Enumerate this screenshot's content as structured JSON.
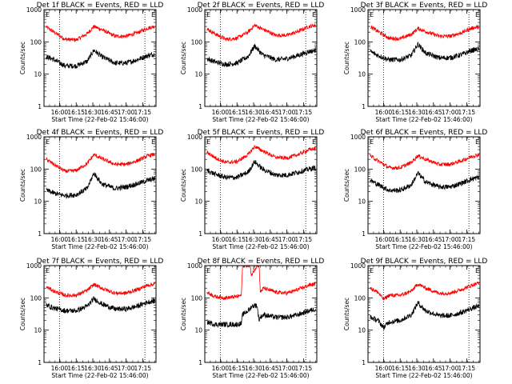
{
  "figure": {
    "xlabel": "Start Time (22-Feb-02 15:46:00)",
    "ylabel": "Counts/sec",
    "xtick_labels": [
      "16:00",
      "16:15",
      "16:30",
      "16:45",
      "17:00",
      "17:15"
    ],
    "ytick_labels": [
      "1",
      "10",
      "100",
      "1000"
    ],
    "colors": {
      "events": "#000000",
      "lld": "#ff0000",
      "axes": "#000000"
    }
  },
  "chart_data": [
    {
      "type": "line",
      "title": "Det 1f BLACK = Events, RED = LLD",
      "xlabel": "Start Time (22-Feb-02 15:46:00)",
      "ylabel": "Counts/sec",
      "yscale": "log",
      "ylim": [
        1,
        1000
      ],
      "xlim": [
        "15:46",
        "17:27"
      ],
      "x": [
        "15:48",
        "15:55",
        "16:05",
        "16:15",
        "16:25",
        "16:31",
        "16:38",
        "16:50",
        "17:00",
        "17:10",
        "17:20",
        "17:26"
      ],
      "series": [
        {
          "name": "LLD",
          "color": "#ff0000",
          "values": [
            290,
            200,
            120,
            115,
            180,
            300,
            240,
            150,
            150,
            190,
            270,
            300
          ]
        },
        {
          "name": "Events",
          "color": "#000000",
          "values": [
            35,
            28,
            18,
            18,
            25,
            55,
            35,
            22,
            22,
            28,
            38,
            42
          ]
        }
      ],
      "markers": [
        {
          "label": "E",
          "x": "15:47"
        },
        {
          "label": "E",
          "x": "17:22"
        }
      ],
      "dotted_x": [
        "16:00",
        "17:17"
      ]
    },
    {
      "type": "line",
      "title": "Det 2f BLACK = Events, RED = LLD",
      "xlabel": "Start Time (22-Feb-02 15:46:00)",
      "ylabel": "Counts/sec",
      "yscale": "log",
      "ylim": [
        1,
        1000
      ],
      "xlim": [
        "15:46",
        "17:27"
      ],
      "x": [
        "15:48",
        "15:55",
        "16:05",
        "16:15",
        "16:25",
        "16:31",
        "16:38",
        "16:50",
        "17:00",
        "17:10",
        "17:20",
        "17:26"
      ],
      "series": [
        {
          "name": "LLD",
          "color": "#ff0000",
          "values": [
            250,
            180,
            120,
            130,
            200,
            330,
            250,
            160,
            160,
            210,
            300,
            330
          ]
        },
        {
          "name": "Events",
          "color": "#000000",
          "values": [
            30,
            24,
            20,
            22,
            35,
            75,
            40,
            28,
            30,
            38,
            50,
            55
          ]
        }
      ],
      "markers": [
        {
          "label": "E",
          "x": "15:47"
        },
        {
          "label": "E",
          "x": "17:22"
        }
      ],
      "dotted_x": [
        "16:00",
        "17:17"
      ]
    },
    {
      "type": "line",
      "title": "Det 3f BLACK = Events, RED = LLD",
      "xlabel": "Start Time (22-Feb-02 15:46:00)",
      "ylabel": "Counts/sec",
      "yscale": "log",
      "ylim": [
        1,
        1000
      ],
      "xlim": [
        "15:46",
        "17:27"
      ],
      "x": [
        "15:48",
        "15:55",
        "16:05",
        "16:15",
        "16:25",
        "16:31",
        "16:38",
        "16:50",
        "17:00",
        "17:10",
        "17:20",
        "17:26"
      ],
      "series": [
        {
          "name": "LLD",
          "color": "#ff0000",
          "values": [
            300,
            210,
            130,
            125,
            170,
            260,
            210,
            150,
            150,
            190,
            270,
            290
          ]
        },
        {
          "name": "Events",
          "color": "#000000",
          "values": [
            50,
            38,
            28,
            28,
            38,
            85,
            45,
            32,
            32,
            40,
            55,
            60
          ]
        }
      ],
      "markers": [
        {
          "label": "E",
          "x": "15:47"
        },
        {
          "label": "E",
          "x": "17:22"
        }
      ],
      "dotted_x": [
        "16:00",
        "17:17"
      ]
    },
    {
      "type": "line",
      "title": "Det 4f BLACK = Events, RED = LLD",
      "xlabel": "Start Time (22-Feb-02 15:46:00)",
      "ylabel": "Counts/sec",
      "yscale": "log",
      "ylim": [
        1,
        1000
      ],
      "xlim": [
        "15:46",
        "17:27"
      ],
      "x": [
        "15:48",
        "15:55",
        "16:05",
        "16:15",
        "16:25",
        "16:31",
        "16:38",
        "16:50",
        "17:00",
        "17:10",
        "17:20",
        "17:26"
      ],
      "series": [
        {
          "name": "LLD",
          "color": "#ff0000",
          "values": [
            200,
            140,
            85,
            90,
            150,
            280,
            210,
            140,
            140,
            180,
            260,
            290
          ]
        },
        {
          "name": "Events",
          "color": "#000000",
          "values": [
            22,
            18,
            15,
            16,
            25,
            75,
            35,
            25,
            28,
            35,
            45,
            50
          ]
        }
      ],
      "markers": [
        {
          "label": "E",
          "x": "15:47"
        },
        {
          "label": "E",
          "x": "17:22"
        }
      ],
      "dotted_x": [
        "16:00",
        "17:17"
      ]
    },
    {
      "type": "line",
      "title": "Det 5f BLACK = Events, RED = LLD",
      "xlabel": "Start Time (22-Feb-02 15:46:00)",
      "ylabel": "Counts/sec",
      "yscale": "log",
      "ylim": [
        1,
        1000
      ],
      "xlim": [
        "15:46",
        "17:27"
      ],
      "x": [
        "15:48",
        "15:55",
        "16:05",
        "16:15",
        "16:25",
        "16:31",
        "16:38",
        "16:50",
        "17:00",
        "17:10",
        "17:20",
        "17:26"
      ],
      "series": [
        {
          "name": "LLD",
          "color": "#ff0000",
          "values": [
            330,
            230,
            160,
            170,
            280,
            500,
            370,
            230,
            220,
            280,
            400,
            430
          ]
        },
        {
          "name": "Events",
          "color": "#000000",
          "values": [
            90,
            70,
            55,
            55,
            80,
            170,
            100,
            65,
            65,
            80,
            100,
            110
          ]
        }
      ],
      "markers": [
        {
          "label": "E",
          "x": "15:47"
        },
        {
          "label": "E",
          "x": "17:22"
        }
      ],
      "dotted_x": [
        "16:00",
        "17:17"
      ]
    },
    {
      "type": "line",
      "title": "Det 6f BLACK = Events, RED = LLD",
      "xlabel": "Start Time (22-Feb-02 15:46:00)",
      "ylabel": "Counts/sec",
      "yscale": "log",
      "ylim": [
        1,
        1000
      ],
      "xlim": [
        "15:46",
        "17:27"
      ],
      "x": [
        "15:48",
        "15:55",
        "16:05",
        "16:15",
        "16:25",
        "16:31",
        "16:38",
        "16:50",
        "17:00",
        "17:10",
        "17:20",
        "17:26"
      ],
      "series": [
        {
          "name": "LLD",
          "color": "#ff0000",
          "values": [
            260,
            180,
            110,
            110,
            160,
            260,
            200,
            140,
            140,
            180,
            250,
            280
          ]
        },
        {
          "name": "Events",
          "color": "#000000",
          "values": [
            45,
            33,
            22,
            22,
            32,
            75,
            40,
            28,
            28,
            36,
            50,
            55
          ]
        }
      ],
      "markers": [
        {
          "label": "E",
          "x": "15:47"
        },
        {
          "label": "E",
          "x": "17:22"
        }
      ],
      "dotted_x": [
        "16:00",
        "17:17"
      ]
    },
    {
      "type": "line",
      "title": "Det 7f BLACK = Events, RED = LLD",
      "xlabel": "Start Time (22-Feb-02 15:46:00)",
      "ylabel": "Counts/sec",
      "yscale": "log",
      "ylim": [
        1,
        1000
      ],
      "xlim": [
        "15:46",
        "17:27"
      ],
      "x": [
        "15:48",
        "15:55",
        "16:05",
        "16:15",
        "16:25",
        "16:31",
        "16:38",
        "16:50",
        "17:00",
        "17:10",
        "17:20",
        "17:26"
      ],
      "series": [
        {
          "name": "LLD",
          "color": "#ff0000",
          "values": [
            220,
            160,
            120,
            120,
            170,
            260,
            200,
            140,
            140,
            180,
            250,
            270
          ]
        },
        {
          "name": "Events",
          "color": "#000000",
          "values": [
            60,
            48,
            40,
            40,
            55,
            95,
            65,
            45,
            45,
            55,
            75,
            80
          ]
        }
      ],
      "markers": [
        {
          "label": "E",
          "x": "15:47"
        },
        {
          "label": "E",
          "x": "17:22"
        }
      ],
      "dotted_x": [
        "16:00",
        "17:17"
      ]
    },
    {
      "type": "line",
      "title": "Det 8f BLACK = Events, RED = LLD",
      "xlabel": "Start Time (22-Feb-02 15:46:00)",
      "ylabel": "Counts/sec",
      "yscale": "log",
      "ylim": [
        1,
        1000
      ],
      "xlim": [
        "15:46",
        "17:27"
      ],
      "x": [
        "15:48",
        "15:55",
        "16:05",
        "16:15",
        "16:19",
        "16:20",
        "16:27",
        "16:28",
        "16:33",
        "16:35",
        "16:36",
        "16:39",
        "16:50",
        "17:00",
        "17:10",
        "17:20",
        "17:26"
      ],
      "series": [
        {
          "name": "LLD",
          "color": "#ff0000",
          "values": [
            150,
            110,
            100,
            110,
            120,
            1000,
            1000,
            500,
            1000,
            1000,
            150,
            200,
            150,
            140,
            180,
            250,
            270
          ]
        },
        {
          "name": "Events",
          "color": "#000000",
          "values": [
            18,
            15,
            15,
            15,
            16,
            30,
            45,
            55,
            60,
            20,
            25,
            30,
            25,
            25,
            30,
            40,
            45
          ]
        }
      ],
      "markers": [
        {
          "label": "E",
          "x": "15:47"
        },
        {
          "label": "E",
          "x": "17:22"
        }
      ],
      "dotted_x": [
        "16:00",
        "17:17"
      ]
    },
    {
      "type": "line",
      "title": "Det 9f BLACK = Events, RED = LLD",
      "xlabel": "Start Time (22-Feb-02 15:46:00)",
      "ylabel": "Counts/sec",
      "yscale": "log",
      "ylim": [
        1,
        1000
      ],
      "xlim": [
        "15:46",
        "17:27"
      ],
      "x": [
        "15:48",
        "15:55",
        "16:00",
        "16:05",
        "16:15",
        "16:25",
        "16:31",
        "16:38",
        "16:50",
        "17:00",
        "17:10",
        "17:20",
        "17:26"
      ],
      "series": [
        {
          "name": "LLD",
          "color": "#ff0000",
          "values": [
            200,
            150,
            90,
            120,
            120,
            160,
            270,
            200,
            140,
            140,
            180,
            250,
            290
          ]
        },
        {
          "name": "Events",
          "color": "#000000",
          "values": [
            25,
            20,
            12,
            18,
            20,
            30,
            70,
            40,
            28,
            28,
            35,
            48,
            55
          ]
        }
      ],
      "markers": [
        {
          "label": "E",
          "x": "15:47"
        },
        {
          "label": "E",
          "x": "17:22"
        }
      ],
      "dotted_x": [
        "16:00",
        "17:17"
      ]
    }
  ]
}
